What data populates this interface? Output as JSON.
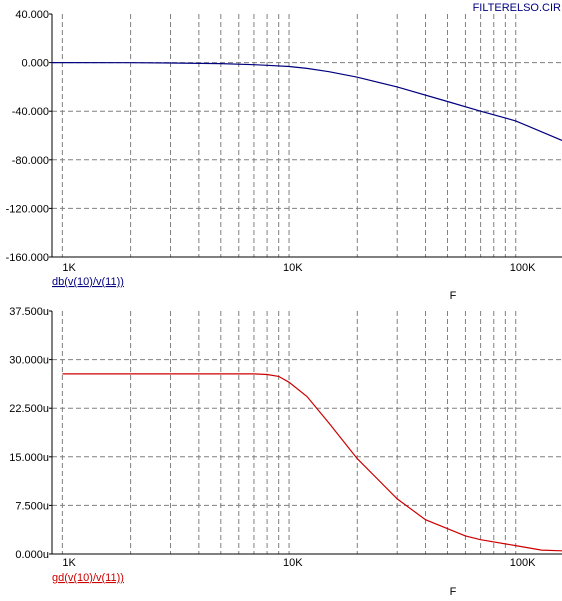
{
  "window_title": "FILTERELSO.CIR",
  "colors": {
    "top_trace": "#000080",
    "bottom_trace": "#cc0000",
    "grid": "#808080",
    "axis": "#000000"
  },
  "chart_data": [
    {
      "type": "line",
      "x_scale": "log",
      "xlim": [
        900,
        160000
      ],
      "ylim": [
        -160,
        40
      ],
      "x_tick_labels": [
        {
          "x": 1000,
          "label": "1K"
        },
        {
          "x": 10000,
          "label": "10K"
        },
        {
          "x": 100000,
          "label": "100K"
        }
      ],
      "y_tick_labels": [
        {
          "y": 40,
          "label": "40.000"
        },
        {
          "y": 0,
          "label": "0.000"
        },
        {
          "y": -40,
          "label": "-40.000"
        },
        {
          "y": -80,
          "label": "-80.000"
        },
        {
          "y": -120,
          "label": "-120.000"
        },
        {
          "y": -160,
          "label": "-160.000"
        }
      ],
      "xlabel": "F",
      "series": [
        {
          "name": "db(v(10)/v(11))",
          "x": [
            900,
            1000,
            2000,
            3000,
            5000,
            7000,
            8000,
            10000,
            12000,
            15000,
            20000,
            30000,
            50000,
            70000,
            100000,
            160000
          ],
          "y": [
            0,
            0,
            -0.1,
            -0.3,
            -0.8,
            -1.7,
            -2.2,
            -3.2,
            -4.8,
            -7.5,
            -12,
            -20,
            -32,
            -40,
            -48,
            -64
          ]
        }
      ]
    },
    {
      "type": "line",
      "x_scale": "log",
      "xlim": [
        900,
        160000
      ],
      "ylim": [
        0,
        37.5
      ],
      "x_tick_labels": [
        {
          "x": 1000,
          "label": "1K"
        },
        {
          "x": 10000,
          "label": "10K"
        },
        {
          "x": 100000,
          "label": "100K"
        }
      ],
      "y_tick_labels": [
        {
          "y": 37.5,
          "label": "37.500u"
        },
        {
          "y": 30,
          "label": "30.000u"
        },
        {
          "y": 22.5,
          "label": "22.500u"
        },
        {
          "y": 15,
          "label": "15.000u"
        },
        {
          "y": 7.5,
          "label": "7.500u"
        },
        {
          "y": 0,
          "label": "0.000u"
        }
      ],
      "xlabel": "F",
      "series": [
        {
          "name": "gd(v(10)/v(11))",
          "x": [
            1000,
            3000,
            5000,
            7000,
            8000,
            9000,
            10000,
            12000,
            15000,
            20000,
            30000,
            40000,
            60000,
            70000,
            100000,
            130000,
            160000
          ],
          "y": [
            27.8,
            27.8,
            27.8,
            27.8,
            27.7,
            27.4,
            26.5,
            24.3,
            20.2,
            14.7,
            8.5,
            5.3,
            2.8,
            2.2,
            1.3,
            0.6,
            0.5
          ]
        }
      ]
    }
  ]
}
